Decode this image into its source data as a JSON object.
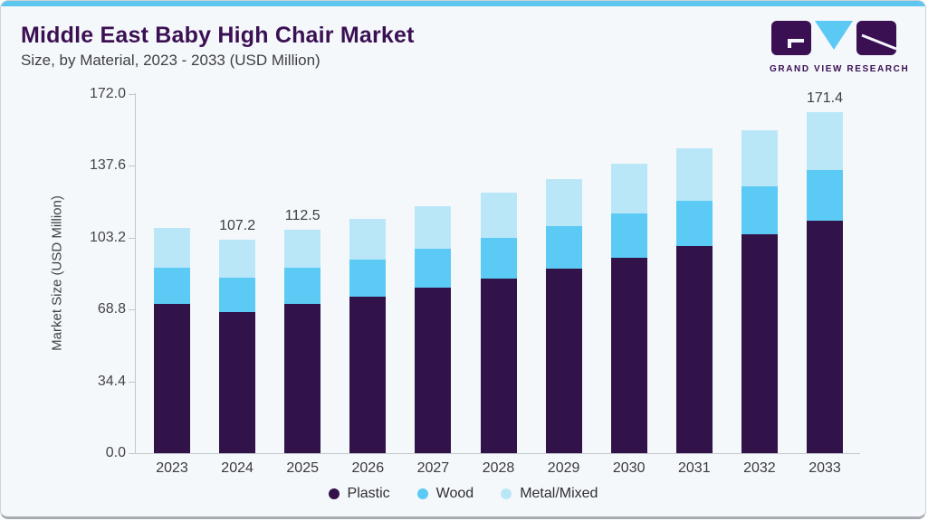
{
  "header": {
    "title": "Middle East Baby High Chair Market",
    "subtitle": "Size, by Material, 2023 - 2033 (USD Million)"
  },
  "logo": {
    "text": "GRAND VIEW RESEARCH",
    "purple": "#3B1053",
    "blue": "#5BC9F4"
  },
  "chart_data": {
    "type": "bar",
    "stacked": true,
    "title": "Middle East Baby High Chair Market Size, by Material, 2023 - 2033 (USD Million)",
    "ylabel": "Market Size (USD Million)",
    "xlabel": "",
    "categories": [
      "2023",
      "2024",
      "2025",
      "2026",
      "2027",
      "2028",
      "2029",
      "2030",
      "2031",
      "2032",
      "2033"
    ],
    "series": [
      {
        "name": "Plastic",
        "color": "#321349",
        "values": [
          75.0,
          71.0,
          75.0,
          78.7,
          83.3,
          87.7,
          92.8,
          98.3,
          103.9,
          110.1,
          116.9
        ]
      },
      {
        "name": "Wood",
        "color": "#5BCAF4",
        "values": [
          18.0,
          17.1,
          18.0,
          18.5,
          19.3,
          20.6,
          21.1,
          22.0,
          22.9,
          24.1,
          25.3
        ]
      },
      {
        "name": "Metal/Mixed",
        "color": "#BAE7F8",
        "values": [
          20.3,
          19.1,
          19.5,
          20.6,
          21.6,
          22.5,
          23.7,
          25.1,
          26.4,
          28.0,
          29.2
        ]
      }
    ],
    "totals": [
      113.3,
      107.2,
      112.5,
      117.8,
      124.2,
      130.8,
      137.6,
      145.4,
      153.2,
      162.2,
      171.4
    ],
    "bar_labels": {
      "2024": "107.2",
      "2025": "112.5",
      "2033": "171.4"
    },
    "yticks": [
      "172.0",
      "137.6",
      "103.2",
      "68.8",
      "34.4",
      "0.0"
    ],
    "ylim": [
      0,
      172
    ],
    "grid": false,
    "legend_position": "bottom"
  }
}
